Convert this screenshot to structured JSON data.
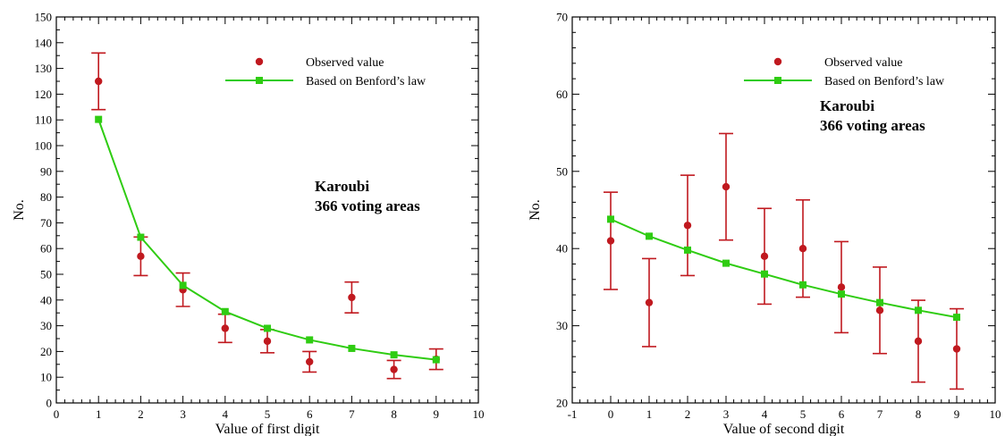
{
  "chart_data": [
    {
      "type": "scatter",
      "xlabel": "Value of first digit",
      "ylabel": "No.",
      "xlim": [
        0,
        10
      ],
      "ylim": [
        0,
        150
      ],
      "x_ticks": [
        "0",
        "1",
        "2",
        "3",
        "4",
        "5",
        "6",
        "7",
        "8",
        "9",
        "10"
      ],
      "y_ticks": [
        "0",
        "10",
        "20",
        "30",
        "40",
        "50",
        "60",
        "70",
        "80",
        "90",
        "100",
        "110",
        "120",
        "130",
        "140",
        "150"
      ],
      "annotation": [
        "Karoubi",
        "366 voting areas"
      ],
      "legend_position": "top-right",
      "colors": {
        "observed": "#c0191f",
        "benford": "#2fcc12"
      },
      "series": [
        {
          "name": "Observed value",
          "marker": "circle",
          "x": [
            1,
            2,
            3,
            4,
            5,
            6,
            7,
            8,
            9
          ],
          "y": [
            125,
            57,
            44,
            29,
            24,
            16,
            41,
            13,
            17
          ],
          "err_low": [
            114,
            49.5,
            37.5,
            23.5,
            19.5,
            12,
            35,
            9.5,
            13
          ],
          "err_high": [
            136,
            64.5,
            50.5,
            34.5,
            28.5,
            20,
            47,
            16.5,
            21
          ]
        },
        {
          "name": "Based on Benford’s law",
          "marker": "square-line",
          "x": [
            1,
            2,
            3,
            4,
            5,
            6,
            7,
            8,
            9
          ],
          "y": [
            110.2,
            64.4,
            45.7,
            35.5,
            29.0,
            24.5,
            21.2,
            18.7,
            16.8
          ]
        }
      ]
    },
    {
      "type": "scatter",
      "xlabel": "Value of second digit",
      "ylabel": "No.",
      "xlim": [
        -1,
        10
      ],
      "ylim": [
        20,
        70
      ],
      "x_ticks": [
        "-1",
        "0",
        "1",
        "2",
        "3",
        "4",
        "5",
        "6",
        "7",
        "8",
        "9",
        "10"
      ],
      "y_ticks": [
        "20",
        "30",
        "40",
        "50",
        "60",
        "70"
      ],
      "annotation": [
        "Karoubi",
        "366 voting areas"
      ],
      "legend_position": "top-right",
      "colors": {
        "observed": "#c0191f",
        "benford": "#2fcc12"
      },
      "series": [
        {
          "name": "Observed value",
          "marker": "circle",
          "x": [
            0,
            1,
            2,
            3,
            4,
            5,
            6,
            7,
            8,
            9
          ],
          "y": [
            41,
            33,
            43,
            48,
            39,
            40,
            35,
            32,
            28,
            27
          ],
          "err_low": [
            34.7,
            27.3,
            36.5,
            41.1,
            32.8,
            33.7,
            29.1,
            26.4,
            22.7,
            21.8
          ],
          "err_high": [
            47.3,
            38.7,
            49.5,
            54.9,
            45.2,
            46.3,
            40.9,
            37.6,
            33.3,
            32.2
          ]
        },
        {
          "name": "Based on Benford’s law",
          "marker": "square-line",
          "x": [
            0,
            1,
            2,
            3,
            4,
            5,
            6,
            7,
            8,
            9
          ],
          "y": [
            43.8,
            41.6,
            39.8,
            38.1,
            36.7,
            35.3,
            34.1,
            33.0,
            32.0,
            31.1
          ]
        }
      ]
    }
  ]
}
